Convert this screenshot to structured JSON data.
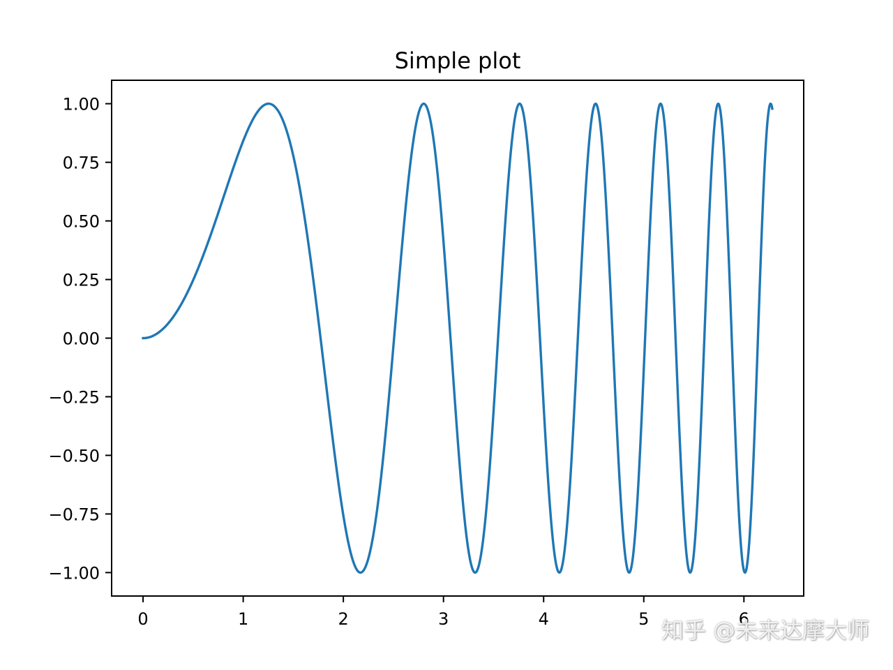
{
  "chart_data": {
    "type": "line",
    "title": "Simple plot",
    "xlabel": "",
    "ylabel": "",
    "xlim": [
      -0.314,
      6.597
    ],
    "ylim": [
      -1.1,
      1.1
    ],
    "x_ticks": [
      0,
      1,
      2,
      3,
      4,
      5,
      6
    ],
    "x_tick_labels": [
      "0",
      "1",
      "2",
      "3",
      "4",
      "5",
      "6"
    ],
    "y_ticks": [
      1.0,
      0.75,
      0.5,
      0.25,
      0.0,
      -0.25,
      -0.5,
      -0.75,
      -1.0
    ],
    "y_tick_labels": [
      "1.00",
      "0.75",
      "0.50",
      "0.25",
      "0.00",
      "−0.25",
      "−0.50",
      "−0.75",
      "−1.00"
    ],
    "grid": false,
    "series": [
      {
        "function": "sin(x^2)",
        "x_range": [
          0,
          6.283
        ],
        "color": "#1f77b4"
      }
    ]
  },
  "watermark": {
    "text": "知乎 @未来达摩大师"
  }
}
